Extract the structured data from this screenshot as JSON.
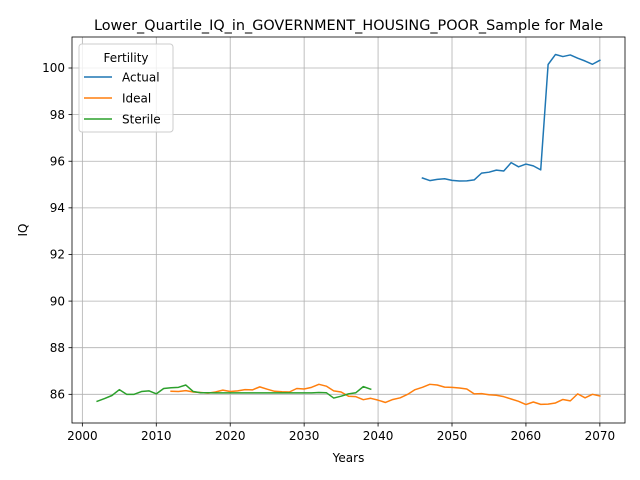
{
  "chart_data": {
    "type": "line",
    "title": "Lower_Quartile_IQ_in_GOVERNMENT_HOUSING_POOR_Sample for Male",
    "xlabel": "Years",
    "ylabel": "IQ",
    "xlim": [
      1998.6,
      2073.4
    ],
    "ylim": [
      84.77,
      101.33
    ],
    "xticks": [
      2000,
      2010,
      2020,
      2030,
      2040,
      2050,
      2060,
      2070
    ],
    "yticks": [
      86,
      88,
      90,
      92,
      94,
      96,
      98,
      100
    ],
    "grid": true,
    "legend": {
      "title": "Fertility",
      "placement": "top-left"
    },
    "series": [
      {
        "name": "Actual",
        "color": "#1f77b4",
        "x": [
          2046,
          2047,
          2048,
          2049,
          2050,
          2051,
          2052,
          2053,
          2054,
          2055,
          2056,
          2057,
          2058,
          2059,
          2060,
          2061,
          2062,
          2063,
          2064,
          2065,
          2066,
          2067,
          2068,
          2069,
          2070
        ],
        "y": [
          95.28,
          95.17,
          95.22,
          95.25,
          95.18,
          95.15,
          95.16,
          95.2,
          95.49,
          95.53,
          95.62,
          95.58,
          95.94,
          95.76,
          95.88,
          95.8,
          95.63,
          100.15,
          100.58,
          100.49,
          100.56,
          100.42,
          100.3,
          100.16,
          100.33
        ]
      },
      {
        "name": "Ideal",
        "color": "#ff7f0e",
        "x": [
          2012,
          2013,
          2014,
          2015,
          2016,
          2017,
          2018,
          2019,
          2020,
          2021,
          2022,
          2023,
          2024,
          2025,
          2026,
          2027,
          2028,
          2029,
          2030,
          2031,
          2032,
          2033,
          2034,
          2035,
          2036,
          2037,
          2038,
          2039,
          2040,
          2041,
          2042,
          2043,
          2044,
          2045,
          2046,
          2047,
          2048,
          2049,
          2050,
          2051,
          2052,
          2053,
          2054,
          2055,
          2056,
          2057,
          2058,
          2059,
          2060,
          2061,
          2062,
          2063,
          2064,
          2065,
          2066,
          2067,
          2068,
          2069,
          2070
        ],
        "y": [
          86.13,
          86.12,
          86.16,
          86.1,
          86.08,
          86.05,
          86.1,
          86.18,
          86.12,
          86.15,
          86.2,
          86.19,
          86.32,
          86.22,
          86.13,
          86.11,
          86.1,
          86.25,
          86.23,
          86.3,
          86.43,
          86.35,
          86.15,
          86.1,
          85.92,
          85.9,
          85.77,
          85.83,
          85.75,
          85.65,
          85.78,
          85.85,
          86.0,
          86.2,
          86.3,
          86.43,
          86.4,
          86.31,
          86.3,
          86.27,
          86.23,
          86.02,
          86.03,
          85.98,
          85.96,
          85.9,
          85.8,
          85.7,
          85.56,
          85.67,
          85.57,
          85.58,
          85.63,
          85.78,
          85.72,
          86.02,
          85.85,
          86.0,
          85.93
        ]
      },
      {
        "name": "Sterile",
        "color": "#2ca02c",
        "x": [
          2002,
          2003,
          2004,
          2005,
          2006,
          2007,
          2008,
          2009,
          2010,
          2011,
          2012,
          2013,
          2014,
          2015,
          2016,
          2017,
          2018,
          2019,
          2020,
          2021,
          2022,
          2023,
          2024,
          2025,
          2026,
          2027,
          2028,
          2029,
          2030,
          2031,
          2032,
          2033,
          2034,
          2035,
          2036,
          2037,
          2038,
          2039
        ],
        "y": [
          85.7,
          85.82,
          85.95,
          86.2,
          86.0,
          86.0,
          86.12,
          86.15,
          86.02,
          86.25,
          86.28,
          86.3,
          86.4,
          86.12,
          86.07,
          86.07,
          86.06,
          86.06,
          86.06,
          86.06,
          86.06,
          86.06,
          86.06,
          86.06,
          86.06,
          86.06,
          86.06,
          86.06,
          86.06,
          86.06,
          86.08,
          86.07,
          85.84,
          85.92,
          86.02,
          86.07,
          86.33,
          86.22
        ]
      }
    ]
  }
}
